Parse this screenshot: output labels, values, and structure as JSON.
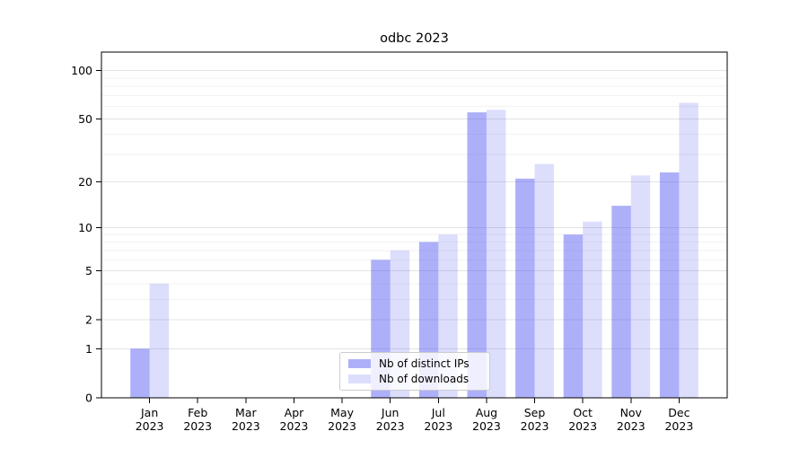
{
  "chart_data": {
    "type": "bar",
    "title": "odbc 2023",
    "xlabel": "",
    "ylabel": "",
    "yscale": "log1p",
    "ylim": [
      0,
      130
    ],
    "grid": true,
    "legend_position": "lower center",
    "year_label": "2023",
    "categories": [
      "Jan",
      "Feb",
      "Mar",
      "Apr",
      "May",
      "Jun",
      "Jul",
      "Aug",
      "Sep",
      "Oct",
      "Nov",
      "Dec"
    ],
    "y_major_ticks": [
      0,
      1,
      2,
      5,
      10,
      20,
      50,
      100
    ],
    "y_minor_gridlines": [
      3,
      4,
      6,
      7,
      8,
      9,
      30,
      40,
      60,
      70,
      80,
      90
    ],
    "series": [
      {
        "name": "Nb of distinct IPs",
        "color": "rgba(80,88,240,0.47)",
        "values": [
          1,
          0,
          0,
          0,
          0,
          6,
          8,
          55,
          21,
          9,
          14,
          23
        ]
      },
      {
        "name": "Nb of downloads",
        "color": "rgba(80,88,240,0.20)",
        "values": [
          4,
          0,
          0,
          0,
          0,
          7,
          9,
          57,
          26,
          11,
          22,
          63
        ]
      }
    ],
    "colors": {
      "background": "#ffffff",
      "axis": "#000000",
      "tick_text": "#000000",
      "major_gridline": "#e3e3e3",
      "minor_gridline": "#f2f2f2"
    }
  }
}
